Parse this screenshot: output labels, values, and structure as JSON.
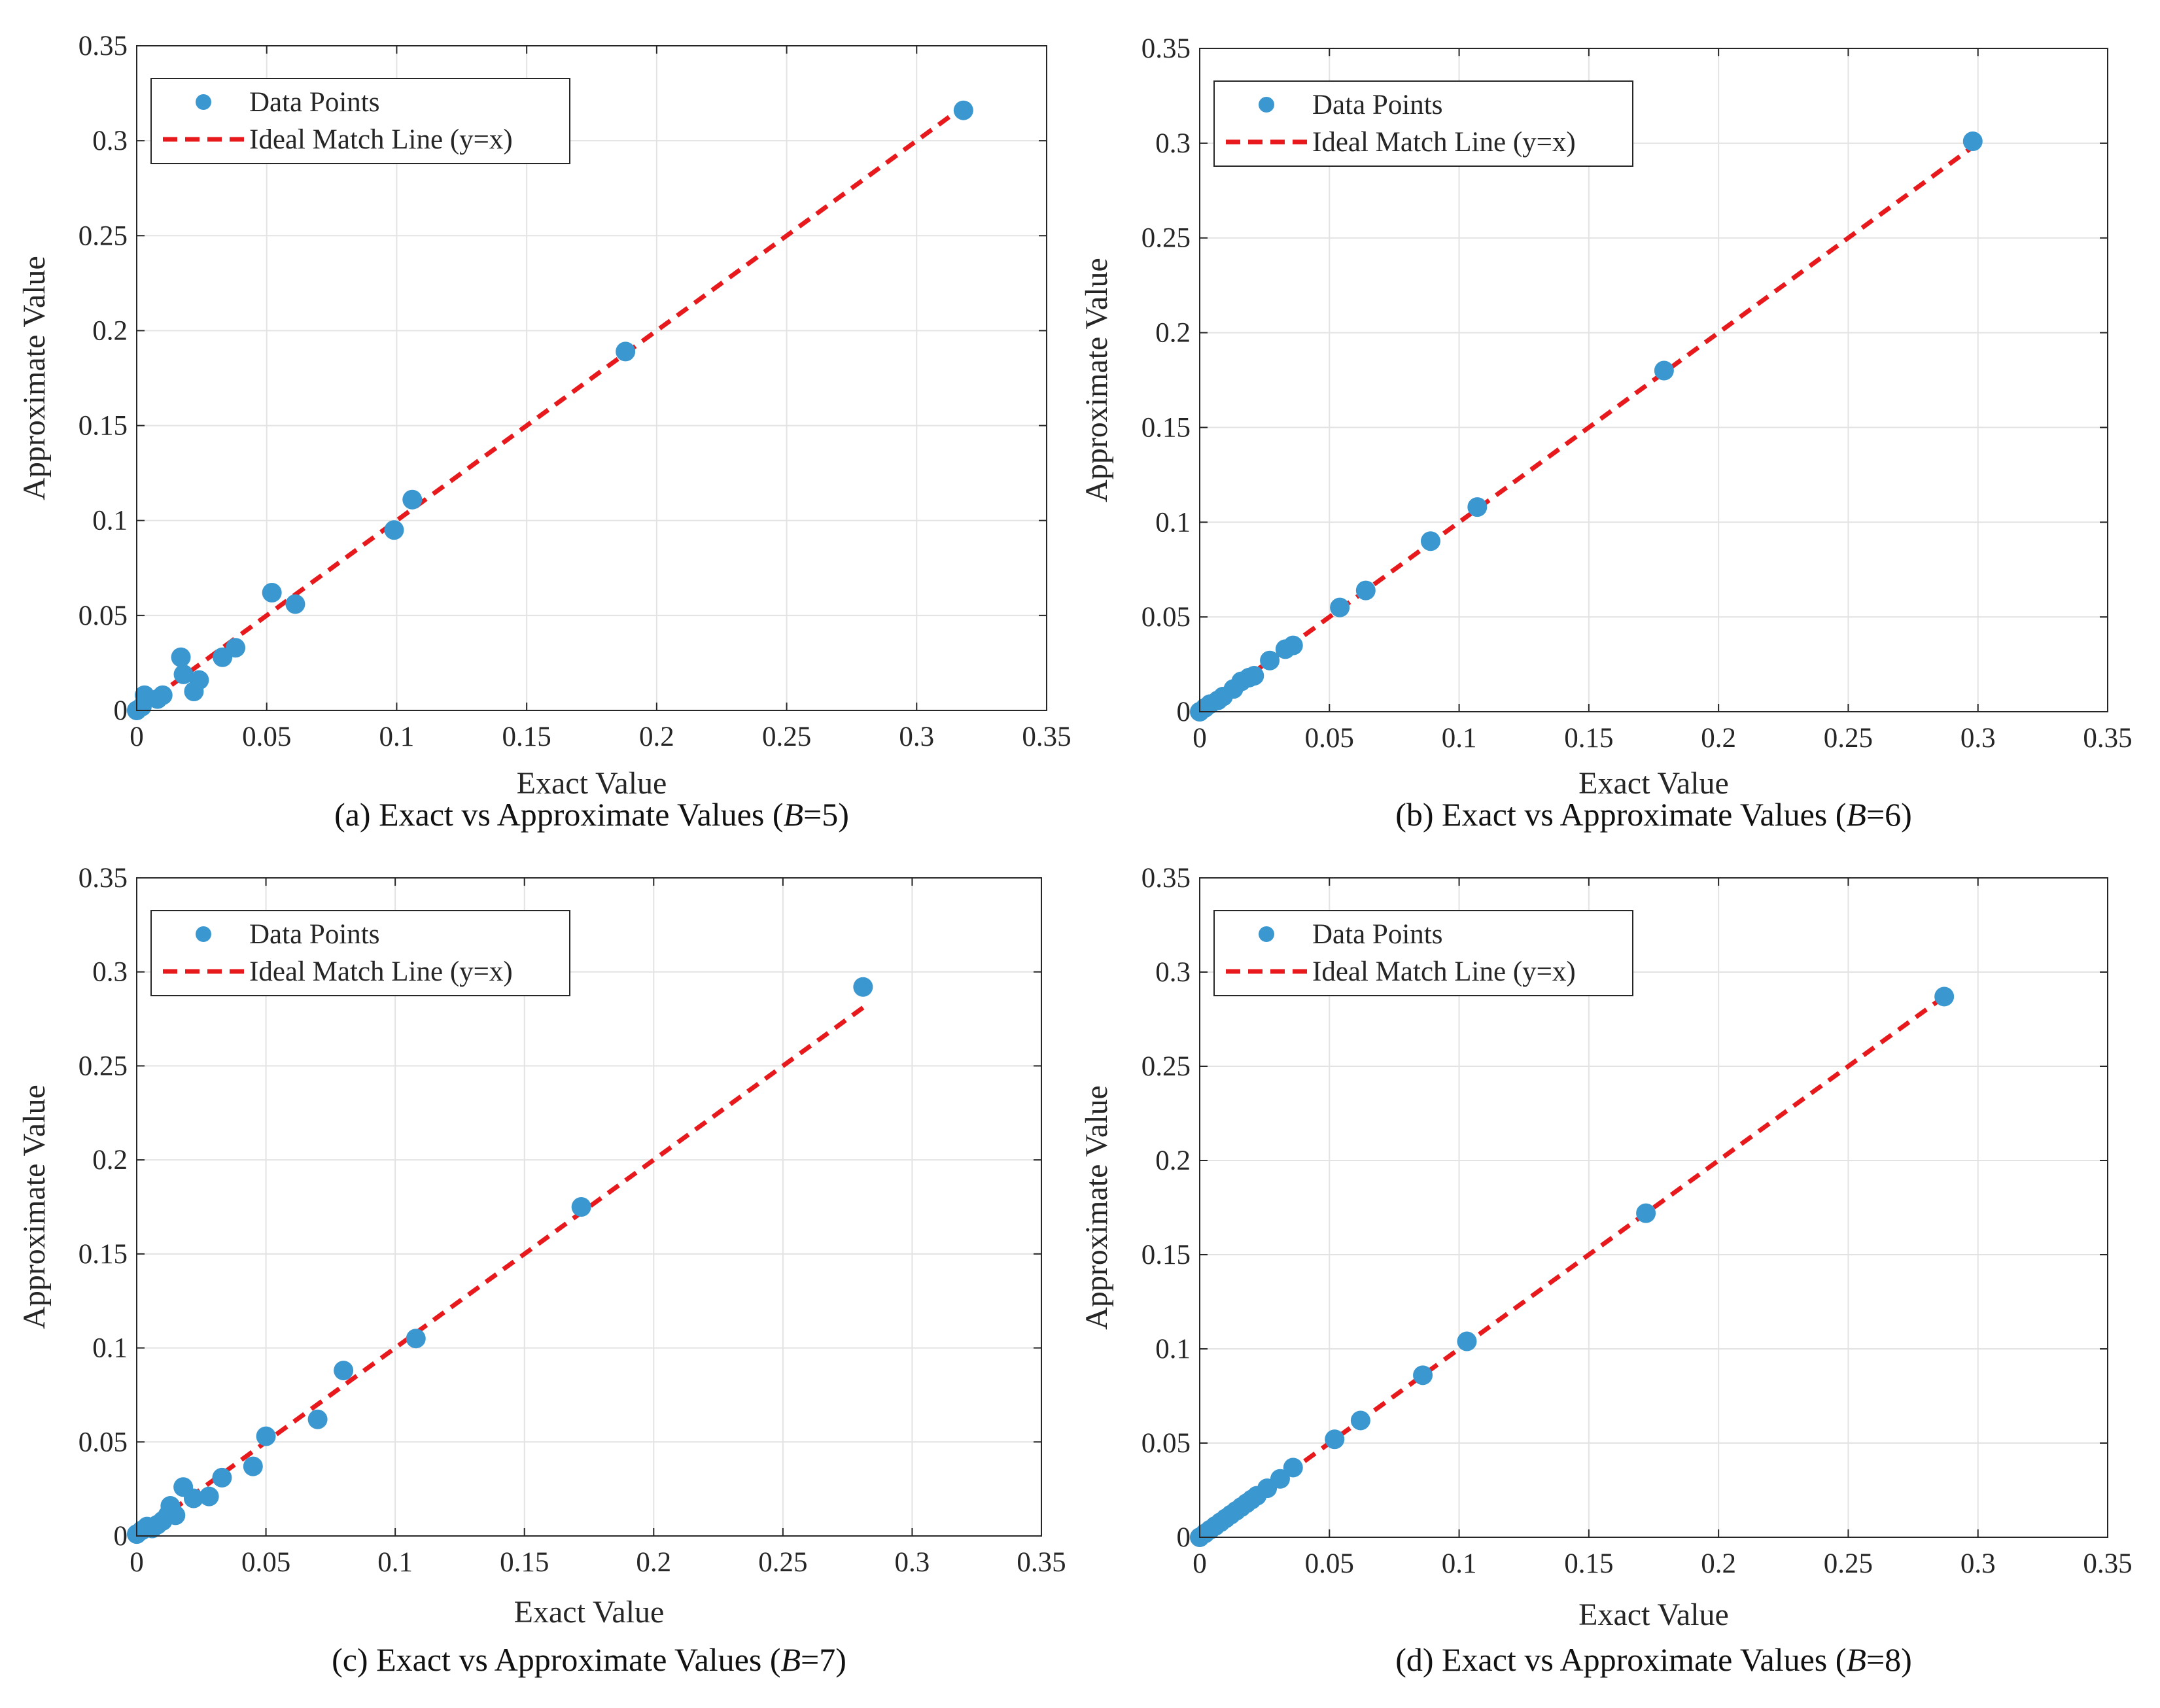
{
  "chart_data": [
    {
      "type": "scatter",
      "caption": "(a) Exact vs Approximate Values (B=5)",
      "caption_prefix": "(a) Exact vs Approximate Values (",
      "caption_var": "B",
      "caption_suffix": "=5)",
      "xlabel": "Exact Value",
      "ylabel": "Approximate Value",
      "xlim": [
        0,
        0.35
      ],
      "ylim": [
        0,
        0.35
      ],
      "xticks": [
        "0",
        "0.05",
        "0.1",
        "0.15",
        "0.2",
        "0.25",
        "0.3",
        "0.35"
      ],
      "yticks": [
        "0",
        "0.05",
        "0.1",
        "0.15",
        "0.2",
        "0.25",
        "0.3",
        "0.35"
      ],
      "grid": true,
      "legend_position": "top-left",
      "legend": [
        "Data Points",
        "Ideal Match Line (y=x)"
      ],
      "ideal_line": [
        0,
        0.318
      ],
      "points": [
        [
          0.0,
          0.0
        ],
        [
          0.002,
          0.002
        ],
        [
          0.003,
          0.008
        ],
        [
          0.008,
          0.006
        ],
        [
          0.01,
          0.008
        ],
        [
          0.017,
          0.028
        ],
        [
          0.018,
          0.019
        ],
        [
          0.022,
          0.01
        ],
        [
          0.024,
          0.016
        ],
        [
          0.033,
          0.028
        ],
        [
          0.038,
          0.033
        ],
        [
          0.052,
          0.062
        ],
        [
          0.061,
          0.056
        ],
        [
          0.099,
          0.095
        ],
        [
          0.106,
          0.111
        ],
        [
          0.188,
          0.189
        ],
        [
          0.318,
          0.316
        ]
      ]
    },
    {
      "type": "scatter",
      "caption": "(b) Exact vs Approximate Values (B=6)",
      "caption_prefix": "(b) Exact vs Approximate Values (",
      "caption_var": "B",
      "caption_suffix": "=6)",
      "xlabel": "Exact Value",
      "ylabel": "Approximate Value",
      "xlim": [
        0,
        0.35
      ],
      "ylim": [
        0,
        0.35
      ],
      "xticks": [
        "0",
        "0.05",
        "0.1",
        "0.15",
        "0.2",
        "0.25",
        "0.3",
        "0.35"
      ],
      "yticks": [
        "0",
        "0.05",
        "0.1",
        "0.15",
        "0.2",
        "0.25",
        "0.3",
        "0.35"
      ],
      "grid": true,
      "legend_position": "top-left",
      "legend": [
        "Data Points",
        "Ideal Match Line (y=x)"
      ],
      "ideal_line": [
        0,
        0.298
      ],
      "points": [
        [
          0.0,
          0.0
        ],
        [
          0.002,
          0.002
        ],
        [
          0.004,
          0.004
        ],
        [
          0.007,
          0.006
        ],
        [
          0.009,
          0.008
        ],
        [
          0.013,
          0.012
        ],
        [
          0.016,
          0.016
        ],
        [
          0.019,
          0.018
        ],
        [
          0.021,
          0.019
        ],
        [
          0.027,
          0.027
        ],
        [
          0.033,
          0.033
        ],
        [
          0.036,
          0.035
        ],
        [
          0.054,
          0.055
        ],
        [
          0.064,
          0.064
        ],
        [
          0.089,
          0.09
        ],
        [
          0.107,
          0.108
        ],
        [
          0.179,
          0.18
        ],
        [
          0.298,
          0.301
        ]
      ]
    },
    {
      "type": "scatter",
      "caption": "(c) Exact vs Approximate Values (B=7)",
      "caption_prefix": "(c) Exact vs Approximate Values (",
      "caption_var": "B",
      "caption_suffix": "=7)",
      "xlabel": "Exact Value",
      "ylabel": "Approximate Value",
      "xlim": [
        0,
        0.35
      ],
      "ylim": [
        0,
        0.35
      ],
      "xticks": [
        "0",
        "0.05",
        "0.1",
        "0.15",
        "0.2",
        "0.25",
        "0.3",
        "0.35"
      ],
      "yticks": [
        "0",
        "0.05",
        "0.1",
        "0.15",
        "0.2",
        "0.25",
        "0.3",
        "0.35"
      ],
      "grid": true,
      "legend_position": "top-left",
      "legend": [
        "Data Points",
        "Ideal Match Line (y=x)"
      ],
      "ideal_line": [
        0,
        0.281
      ],
      "points": [
        [
          0.0,
          0.001
        ],
        [
          0.002,
          0.003
        ],
        [
          0.004,
          0.005
        ],
        [
          0.006,
          0.004
        ],
        [
          0.008,
          0.006
        ],
        [
          0.01,
          0.008
        ],
        [
          0.012,
          0.011
        ],
        [
          0.013,
          0.016
        ],
        [
          0.015,
          0.011
        ],
        [
          0.018,
          0.026
        ],
        [
          0.022,
          0.02
        ],
        [
          0.028,
          0.021
        ],
        [
          0.033,
          0.031
        ],
        [
          0.045,
          0.037
        ],
        [
          0.05,
          0.053
        ],
        [
          0.07,
          0.062
        ],
        [
          0.08,
          0.088
        ],
        [
          0.108,
          0.105
        ],
        [
          0.172,
          0.175
        ],
        [
          0.281,
          0.292
        ]
      ]
    },
    {
      "type": "scatter",
      "caption": "(d) Exact vs Approximate Values (B=8)",
      "caption_prefix": "(d) Exact vs Approximate Values (",
      "caption_var": "B",
      "caption_suffix": "=8)",
      "xlabel": "Exact Value",
      "ylabel": "Approximate Value",
      "xlim": [
        0,
        0.35
      ],
      "ylim": [
        0,
        0.35
      ],
      "xticks": [
        "0",
        "0.05",
        "0.1",
        "0.15",
        "0.2",
        "0.25",
        "0.3",
        "0.35"
      ],
      "yticks": [
        "0",
        "0.05",
        "0.1",
        "0.15",
        "0.2",
        "0.25",
        "0.3",
        "0.35"
      ],
      "grid": true,
      "legend_position": "top-left",
      "legend": [
        "Data Points",
        "Ideal Match Line (y=x)"
      ],
      "ideal_line": [
        0,
        0.287
      ],
      "points": [
        [
          0.0,
          0.0
        ],
        [
          0.002,
          0.002
        ],
        [
          0.004,
          0.004
        ],
        [
          0.006,
          0.006
        ],
        [
          0.008,
          0.008
        ],
        [
          0.01,
          0.01
        ],
        [
          0.012,
          0.012
        ],
        [
          0.014,
          0.014
        ],
        [
          0.016,
          0.016
        ],
        [
          0.018,
          0.018
        ],
        [
          0.02,
          0.02
        ],
        [
          0.022,
          0.022
        ],
        [
          0.026,
          0.026
        ],
        [
          0.031,
          0.031
        ],
        [
          0.036,
          0.037
        ],
        [
          0.052,
          0.052
        ],
        [
          0.062,
          0.062
        ],
        [
          0.086,
          0.086
        ],
        [
          0.103,
          0.104
        ],
        [
          0.172,
          0.172
        ],
        [
          0.287,
          0.287
        ]
      ]
    }
  ],
  "colors": {
    "points": "#3a97cf",
    "ideal_line": "#e8191c",
    "grid": "#e3e3e3",
    "axes": "#262626"
  }
}
